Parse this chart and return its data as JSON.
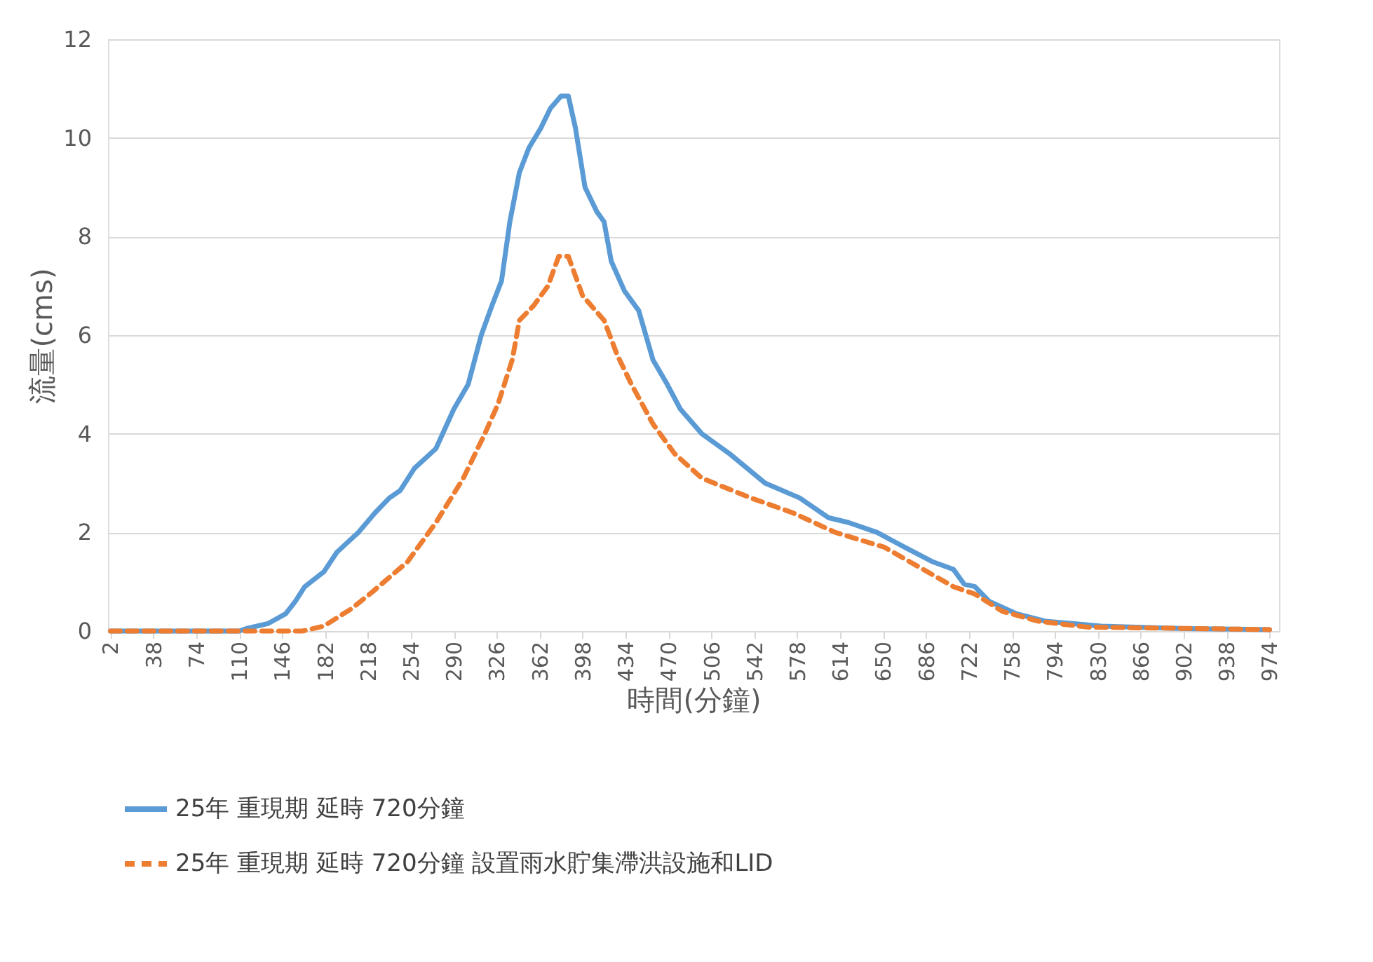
{
  "chart_data": {
    "type": "line",
    "xlabel": "時間(分鐘)",
    "ylabel": "流量(cms)",
    "xlim": [
      0,
      982
    ],
    "xticks": [
      2,
      38,
      74,
      110,
      146,
      182,
      218,
      254,
      290,
      326,
      362,
      398,
      434,
      470,
      506,
      542,
      578,
      614,
      650,
      686,
      722,
      758,
      794,
      830,
      866,
      902,
      938,
      974
    ],
    "ylim": [
      0,
      12
    ],
    "yticks": [
      0,
      2,
      4,
      6,
      8,
      10,
      12
    ],
    "grid": "y",
    "legend": "bottom",
    "marker": "none",
    "series": [
      {
        "name": "25年 重現期 延時 720分鐘",
        "color": "#5b9bd5",
        "line_style": "solid",
        "x": [
          2,
          110,
          116,
          134,
          149,
          157,
          165,
          181,
          192,
          210,
          224,
          236,
          245,
          257,
          275,
          290,
          302,
          313,
          322,
          330,
          337,
          345,
          353,
          363,
          371,
          380,
          386,
          392,
          400,
          410,
          416,
          422,
          433,
          445,
          457,
          469,
          480,
          498,
          521,
          551,
          580,
          604,
          621,
          645,
          668,
          692,
          709,
          718,
          727,
          739,
          762,
          786,
          833,
          903,
          974
        ],
        "values": [
          0,
          0,
          0.05,
          0.15,
          0.35,
          0.6,
          0.9,
          1.2,
          1.6,
          2.0,
          2.4,
          2.7,
          2.85,
          3.3,
          3.7,
          4.5,
          5.0,
          6.0,
          6.6,
          7.1,
          8.3,
          9.3,
          9.8,
          10.2,
          10.6,
          10.85,
          10.85,
          10.2,
          9.0,
          8.5,
          8.3,
          7.5,
          6.9,
          6.5,
          5.5,
          5.0,
          4.5,
          4.0,
          3.6,
          3.0,
          2.7,
          2.3,
          2.2,
          2.0,
          1.7,
          1.4,
          1.25,
          0.95,
          0.9,
          0.6,
          0.35,
          0.2,
          0.1,
          0.05,
          0.03
        ]
      },
      {
        "name": "25年 重現期 延時 720分鐘 設置雨水貯集滯洪設施和LID",
        "color": "#ed7d31",
        "line_style": "dashed",
        "x": [
          2,
          163,
          181,
          204,
          222,
          251,
          275,
          298,
          316,
          327,
          339,
          345,
          357,
          369,
          378,
          386,
          398,
          416,
          427,
          439,
          457,
          475,
          498,
          539,
          574,
          610,
          651,
          680,
          709,
          727,
          750,
          780,
          821,
          974
        ],
        "values": [
          0,
          0,
          0.1,
          0.45,
          0.8,
          1.4,
          2.2,
          3.1,
          4.0,
          4.6,
          5.5,
          6.3,
          6.6,
          7.0,
          7.6,
          7.6,
          6.8,
          6.3,
          5.6,
          5.0,
          4.2,
          3.6,
          3.1,
          2.7,
          2.4,
          2.0,
          1.7,
          1.3,
          0.9,
          0.75,
          0.4,
          0.2,
          0.08,
          0.03
        ]
      }
    ]
  }
}
